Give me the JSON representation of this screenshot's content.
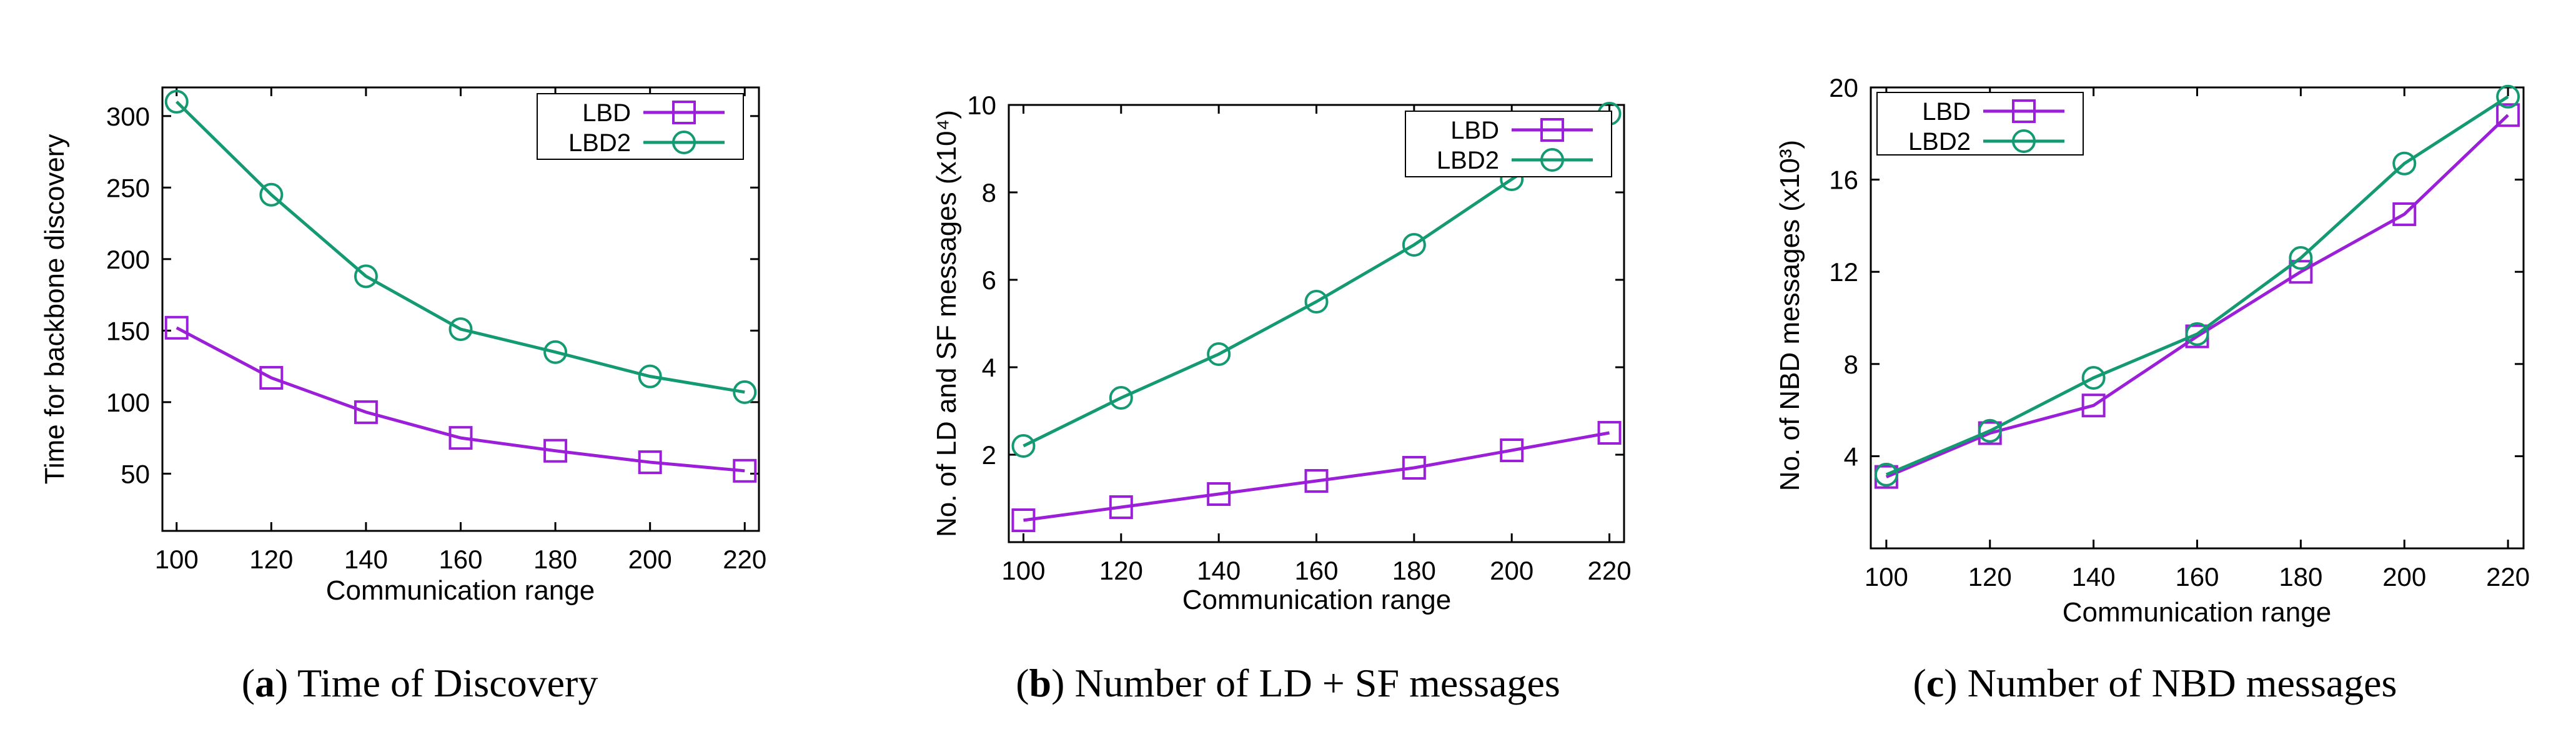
{
  "colors": {
    "lbd": "#9b1fd8",
    "lbd2": "#149a72",
    "axis": "#000000"
  },
  "chart_data": [
    {
      "type": "line",
      "panel_letter": "a",
      "caption": ") Time of Discovery",
      "xlabel": "Communication range",
      "ylabel": "Time for backbone discovery",
      "x": [
        100,
        120,
        140,
        160,
        180,
        200,
        220
      ],
      "xlim": [
        97,
        223
      ],
      "ylim": [
        10,
        320
      ],
      "xticks": [
        100,
        120,
        140,
        160,
        180,
        200,
        220
      ],
      "xtick_labels": [
        "100",
        "120",
        "140",
        "160",
        "180",
        "200",
        "220"
      ],
      "yticks": [
        50,
        100,
        150,
        200,
        250,
        300
      ],
      "ytick_labels": [
        "50",
        "100",
        "150",
        "200",
        "250",
        "300"
      ],
      "legend_position": "top-right",
      "series": [
        {
          "name": "LBD",
          "marker": "square",
          "values": [
            152,
            117,
            93,
            75,
            66,
            58,
            52
          ]
        },
        {
          "name": "LBD2",
          "marker": "circle",
          "values": [
            310,
            245,
            188,
            151,
            135,
            118,
            107
          ]
        }
      ]
    },
    {
      "type": "line",
      "panel_letter": "b",
      "caption": ") Number of LD + SF messages",
      "xlabel": "Communication range",
      "ylabel": "No. of LD and SF messages (x10⁴)",
      "x": [
        100,
        120,
        140,
        160,
        180,
        200,
        220
      ],
      "xlim": [
        97,
        223
      ],
      "ylim": [
        0,
        10
      ],
      "xticks": [
        100,
        120,
        140,
        160,
        180,
        200,
        220
      ],
      "xtick_labels": [
        "100",
        "120",
        "140",
        "160",
        "180",
        "200",
        "220"
      ],
      "yticks": [
        2,
        4,
        6,
        8,
        10
      ],
      "ytick_labels": [
        "2",
        "4",
        "6",
        "8",
        "10"
      ],
      "legend_position": "top-right",
      "series": [
        {
          "name": "LBD",
          "marker": "square",
          "values": [
            0.5,
            0.8,
            1.1,
            1.4,
            1.7,
            2.1,
            2.5
          ]
        },
        {
          "name": "LBD2",
          "marker": "circle",
          "values": [
            2.2,
            3.3,
            4.3,
            5.5,
            6.8,
            8.3,
            9.8
          ]
        }
      ]
    },
    {
      "type": "line",
      "panel_letter": "c",
      "caption": ") Number of NBD messages",
      "xlabel": "Communication range",
      "ylabel": "No. of NBD messages (x10³)",
      "x": [
        100,
        120,
        140,
        160,
        180,
        200,
        220
      ],
      "xlim": [
        97,
        223
      ],
      "ylim": [
        0,
        20
      ],
      "xticks": [
        100,
        120,
        140,
        160,
        180,
        200,
        220
      ],
      "xtick_labels": [
        "100",
        "120",
        "140",
        "160",
        "180",
        "200",
        "220"
      ],
      "yticks": [
        4,
        8,
        12,
        16,
        20
      ],
      "ytick_labels": [
        "4",
        "8",
        "12",
        "16",
        "20"
      ],
      "legend_position": "top-left",
      "series": [
        {
          "name": "LBD",
          "marker": "square",
          "values": [
            3.1,
            5.0,
            6.2,
            9.2,
            12.0,
            14.5,
            18.8
          ]
        },
        {
          "name": "LBD2",
          "marker": "circle",
          "values": [
            3.2,
            5.1,
            7.4,
            9.3,
            12.6,
            16.7,
            19.6
          ]
        }
      ]
    }
  ]
}
